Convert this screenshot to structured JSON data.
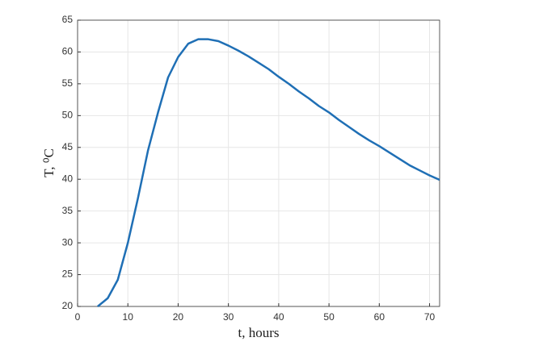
{
  "chart_data": {
    "type": "line",
    "xlabel": "t, hours",
    "ylabel": "T, ⁰C",
    "x": [
      4,
      6,
      8,
      10,
      12,
      14,
      16,
      18,
      20,
      22,
      24,
      26,
      28,
      30,
      32,
      34,
      36,
      38,
      40,
      42,
      44,
      46,
      48,
      50,
      52,
      54,
      56,
      58,
      60,
      62,
      64,
      66,
      68,
      70,
      72
    ],
    "series": [
      {
        "color": "#1f6fb5",
        "values": [
          20,
          21.3,
          24.2,
          30,
          37,
          44.5,
          50.5,
          56,
          59.2,
          61.3,
          62,
          62,
          61.7,
          61,
          60.2,
          59.3,
          58.3,
          57.3,
          56.1,
          55,
          53.8,
          52.7,
          51.5,
          50.5,
          49.3,
          48.2,
          47.1,
          46.1,
          45.2,
          44.2,
          43.2,
          42.2,
          41.4,
          40.6,
          39.9
        ]
      }
    ],
    "xlim": [
      0,
      72
    ],
    "ylim": [
      20,
      65
    ],
    "xticks": [
      0,
      10,
      20,
      30,
      40,
      50,
      60,
      70
    ],
    "yticks": [
      20,
      25,
      30,
      35,
      40,
      45,
      50,
      55,
      60,
      65
    ],
    "grid": true
  }
}
